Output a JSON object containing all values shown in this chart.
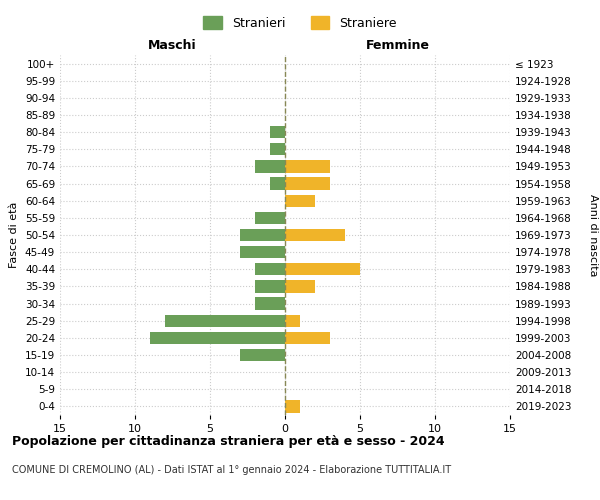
{
  "age_groups_bottom_to_top": [
    "0-4",
    "5-9",
    "10-14",
    "15-19",
    "20-24",
    "25-29",
    "30-34",
    "35-39",
    "40-44",
    "45-49",
    "50-54",
    "55-59",
    "60-64",
    "65-69",
    "70-74",
    "75-79",
    "80-84",
    "85-89",
    "90-94",
    "95-99",
    "100+"
  ],
  "birth_years_bottom_to_top": [
    "2019-2023",
    "2014-2018",
    "2009-2013",
    "2004-2008",
    "1999-2003",
    "1994-1998",
    "1989-1993",
    "1984-1988",
    "1979-1983",
    "1974-1978",
    "1969-1973",
    "1964-1968",
    "1959-1963",
    "1954-1958",
    "1949-1953",
    "1944-1948",
    "1939-1943",
    "1934-1938",
    "1929-1933",
    "1924-1928",
    "≤ 1923"
  ],
  "maschi_bottom_to_top": [
    0,
    0,
    0,
    3,
    9,
    8,
    2,
    2,
    2,
    3,
    3,
    2,
    0,
    1,
    2,
    1,
    1,
    0,
    0,
    0,
    0
  ],
  "femmine_bottom_to_top": [
    1,
    0,
    0,
    0,
    3,
    1,
    0,
    2,
    5,
    0,
    4,
    0,
    2,
    3,
    3,
    0,
    0,
    0,
    0,
    0,
    0
  ],
  "male_color": "#6a9f58",
  "female_color": "#f0b429",
  "grid_color": "#cccccc",
  "center_line_color": "#888855",
  "title": "Popolazione per cittadinanza straniera per età e sesso - 2024",
  "subtitle": "COMUNE DI CREMOLINO (AL) - Dati ISTAT al 1° gennaio 2024 - Elaborazione TUTTITALIA.IT",
  "xlabel_left": "Maschi",
  "xlabel_right": "Femmine",
  "ylabel_left": "Fasce di età",
  "ylabel_right": "Anni di nascita",
  "legend_stranieri": "Stranieri",
  "legend_straniere": "Straniere",
  "xlim": 15,
  "background_color": "#ffffff"
}
